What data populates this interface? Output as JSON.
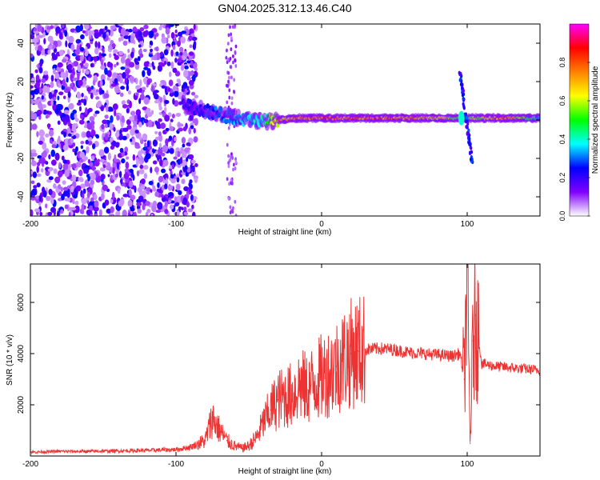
{
  "title": "GN04.2025.312.13.46.C40",
  "chart_data": [
    {
      "type": "heatmap",
      "title": "GN04.2025.312.13.46.C40",
      "xlabel": "Height of straight line (km)",
      "ylabel": "Frequency (Hz)",
      "xlim": [
        -200,
        150
      ],
      "ylim": [
        -50,
        50
      ],
      "xticks": [
        -200,
        -100,
        0,
        100
      ],
      "yticks": [
        -40,
        -20,
        0,
        20,
        40
      ],
      "colorbar": {
        "label": "Normalized spectral amplitude",
        "range": [
          0,
          1
        ],
        "ticks": [
          0.0,
          0.2,
          0.4,
          0.6,
          0.8
        ],
        "colormap": [
          "#ffffff",
          "#8000ff",
          "#0000ff",
          "#00ffff",
          "#00ff00",
          "#ffff00",
          "#ff8000",
          "#ff0000",
          "#ff00ff"
        ]
      },
      "noise_region_km": [
        -200,
        -90
      ],
      "dominant_line": {
        "x": [
          -95,
          -80,
          -65,
          -50,
          -40,
          -30,
          -15,
          0,
          25,
          50,
          75,
          100,
          125,
          150
        ],
        "freq_hz": [
          8,
          5,
          2,
          0,
          -1,
          0,
          1,
          1,
          1,
          1,
          1,
          1,
          1,
          1
        ],
        "amplitude": [
          0.2,
          0.3,
          0.35,
          0.4,
          0.45,
          0.8,
          0.85,
          0.9,
          0.9,
          0.9,
          0.8,
          0.55,
          0.9,
          0.4
        ]
      }
    },
    {
      "type": "line",
      "title": "",
      "xlabel": "Height of straight line (km)",
      "ylabel": "SNR (10 * v/v)",
      "xlim": [
        -200,
        150
      ],
      "ylim": [
        0,
        7500
      ],
      "xticks": [
        -200,
        -100,
        0,
        100
      ],
      "yticks": [
        2000,
        4000,
        6000
      ],
      "color": "#ee3333",
      "series": [
        {
          "name": "SNR",
          "x": [
            -200,
            -180,
            -160,
            -140,
            -120,
            -100,
            -90,
            -80,
            -75,
            -70,
            -65,
            -60,
            -55,
            -50,
            -45,
            -40,
            -35,
            -30,
            -25,
            -20,
            -15,
            -10,
            -5,
            0,
            5,
            10,
            15,
            20,
            25,
            30,
            40,
            50,
            60,
            70,
            80,
            90,
            95,
            98,
            100,
            102,
            104,
            106,
            110,
            120,
            130,
            140,
            150
          ],
          "y": [
            150,
            180,
            180,
            200,
            220,
            250,
            350,
            600,
            1500,
            1000,
            600,
            400,
            300,
            400,
            700,
            1300,
            1800,
            2200,
            2300,
            2400,
            2800,
            2600,
            2900,
            3100,
            3300,
            3500,
            3800,
            4000,
            4100,
            4150,
            4200,
            4150,
            4050,
            4000,
            3950,
            3900,
            4000,
            3000,
            7500,
            500,
            4500,
            5500,
            3600,
            3500,
            3450,
            3400,
            3350
          ]
        }
      ]
    }
  ]
}
